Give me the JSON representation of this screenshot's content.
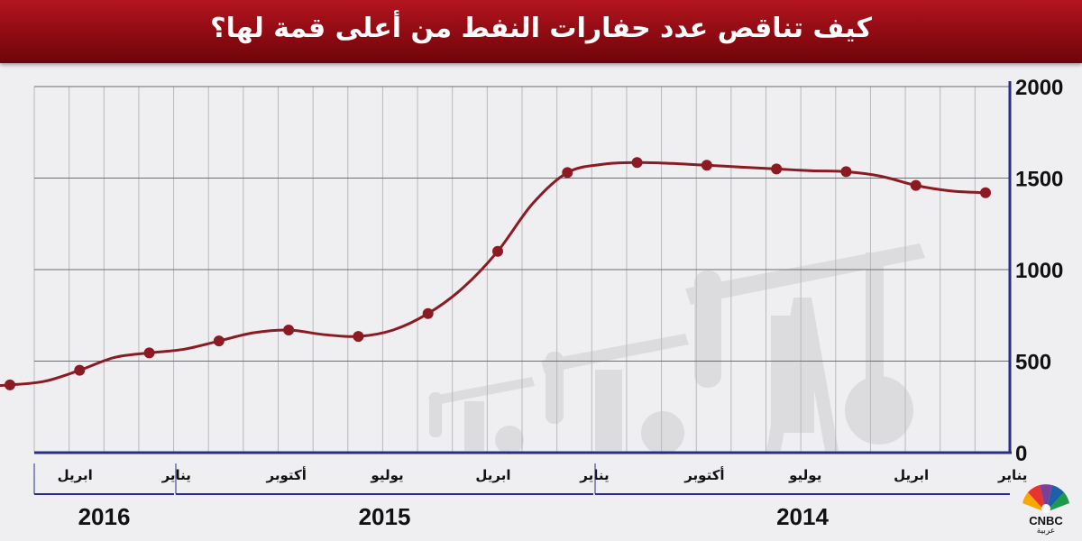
{
  "title": "كيف تناقص عدد حفارات النفط من أعلى قمة لها؟",
  "logo": {
    "text": "CNBC",
    "sub": "عربية"
  },
  "colors": {
    "title_bar": "#a0101a",
    "line": "#8b1a22",
    "axis": "#2b2b8c",
    "watermark": "#dcdcdf"
  },
  "chart_data": {
    "type": "line",
    "x_direction": "right-to-left",
    "ylim": [
      0,
      2000
    ],
    "y_ticks": [
      "0",
      "500",
      "1000",
      "1500",
      "2000"
    ],
    "x_ticks": [
      {
        "label": "يناير",
        "month": "2014-01"
      },
      {
        "label": "ابريل",
        "month": "2014-04"
      },
      {
        "label": "يوليو",
        "month": "2014-07"
      },
      {
        "label": "أكتوبر",
        "month": "2014-10"
      },
      {
        "label": "يناير",
        "month": "2015-01"
      },
      {
        "label": "ابريل",
        "month": "2015-04"
      },
      {
        "label": "يوليو",
        "month": "2015-07"
      },
      {
        "label": "أكتوبر",
        "month": "2015-10"
      },
      {
        "label": "يناير",
        "month": "2016-01"
      },
      {
        "label": "ابريل",
        "month": "2016-04"
      }
    ],
    "years": [
      "2014",
      "2015",
      "2016"
    ],
    "grid": true,
    "series": [
      {
        "points": [
          [
            "2014-01",
            1420
          ],
          [
            "2014-02",
            1430
          ],
          [
            "2014-03",
            1460
          ],
          [
            "2014-04",
            1510
          ],
          [
            "2014-05",
            1535
          ],
          [
            "2014-06",
            1540
          ],
          [
            "2014-07",
            1550
          ],
          [
            "2014-08",
            1560
          ],
          [
            "2014-09",
            1570
          ],
          [
            "2014-10",
            1580
          ],
          [
            "2014-11",
            1585
          ],
          [
            "2014-12",
            1575
          ],
          [
            "2015-01",
            1530
          ],
          [
            "2015-02",
            1360
          ],
          [
            "2015-03",
            1100
          ],
          [
            "2015-04",
            900
          ],
          [
            "2015-05",
            760
          ],
          [
            "2015-06",
            670
          ],
          [
            "2015-07",
            635
          ],
          [
            "2015-08",
            645
          ],
          [
            "2015-09",
            670
          ],
          [
            "2015-10",
            655
          ],
          [
            "2015-11",
            610
          ],
          [
            "2015-12",
            565
          ],
          [
            "2016-01",
            545
          ],
          [
            "2016-02",
            520
          ],
          [
            "2016-03",
            450
          ],
          [
            "2016-04",
            390
          ],
          [
            "2016-05",
            370
          ],
          [
            "2016-06",
            360
          ]
        ]
      }
    ]
  }
}
